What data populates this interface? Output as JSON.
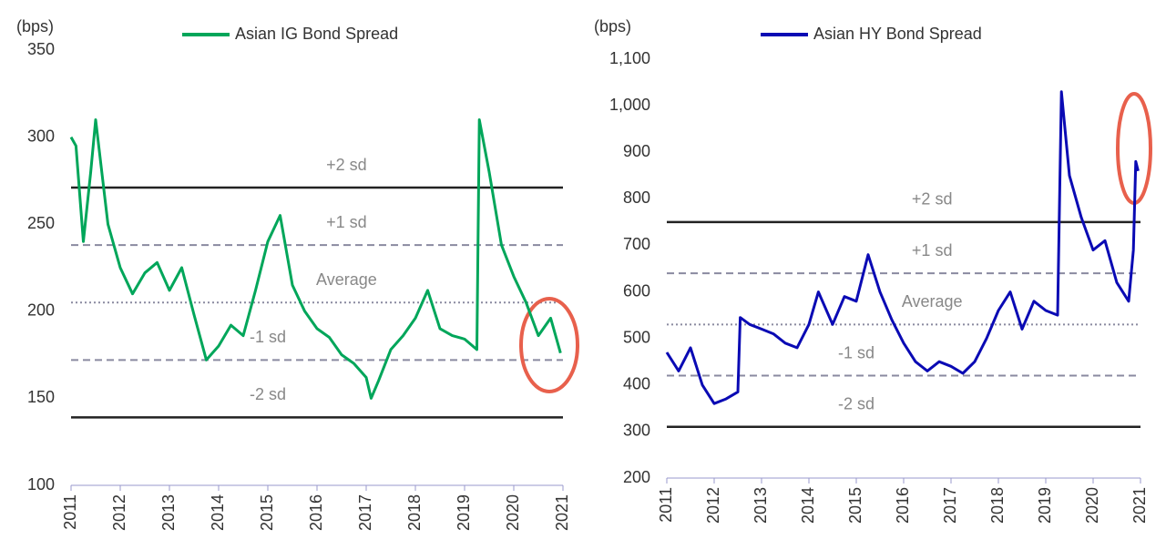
{
  "chart_data": [
    {
      "type": "line",
      "y_unit_label": "(bps)",
      "x": [
        2011,
        2011.1,
        2011.25,
        2011.4,
        2011.5,
        2011.75,
        2012,
        2012.25,
        2012.5,
        2012.75,
        2013,
        2013.25,
        2013.5,
        2013.75,
        2014,
        2014.25,
        2014.5,
        2014.75,
        2015,
        2015.25,
        2015.5,
        2015.75,
        2016,
        2016.25,
        2016.5,
        2016.75,
        2017,
        2017.1,
        2017.25,
        2017.5,
        2017.75,
        2018,
        2018.25,
        2018.5,
        2018.75,
        2019,
        2019.25,
        2019.3,
        2019.5,
        2019.75,
        2020,
        2020.25,
        2020.5,
        2020.75,
        2020.95
      ],
      "series": [
        {
          "name": "Asian IG Bond Spread",
          "color": "#00a65a",
          "values": [
            300,
            295,
            240,
            280,
            310,
            250,
            225,
            210,
            222,
            228,
            212,
            225,
            198,
            172,
            180,
            192,
            186,
            212,
            240,
            255,
            215,
            200,
            190,
            185,
            175,
            170,
            162,
            150,
            160,
            178,
            186,
            196,
            212,
            190,
            186,
            184,
            178,
            310,
            280,
            238,
            220,
            205,
            186,
            196,
            176
          ]
        }
      ],
      "xlim": [
        2011,
        2021
      ],
      "xticks": [
        2011,
        2012,
        2013,
        2014,
        2015,
        2016,
        2017,
        2018,
        2019,
        2020,
        2021
      ],
      "ylim": [
        100,
        350
      ],
      "yticks": [
        100,
        150,
        200,
        250,
        300,
        350
      ],
      "reference_lines": [
        {
          "label": "+2 sd",
          "value": 271,
          "style": "solid"
        },
        {
          "label": "+1 sd",
          "value": 238,
          "style": "dashed"
        },
        {
          "label": "Average",
          "value": 205,
          "style": "dotted"
        },
        {
          "label": "-1 sd",
          "value": 172,
          "style": "dashed"
        },
        {
          "label": "-2 sd",
          "value": 139,
          "style": "solid"
        }
      ]
    },
    {
      "type": "line",
      "y_unit_label": "(bps)",
      "x": [
        2011,
        2011.25,
        2011.5,
        2011.75,
        2012,
        2012.25,
        2012.5,
        2012.55,
        2012.75,
        2013,
        2013.25,
        2013.5,
        2013.75,
        2014,
        2014.2,
        2014.5,
        2014.75,
        2015,
        2015.25,
        2015.5,
        2015.75,
        2016,
        2016.25,
        2016.5,
        2016.75,
        2017,
        2017.25,
        2017.5,
        2017.75,
        2018,
        2018.25,
        2018.5,
        2018.75,
        2019,
        2019.25,
        2019.33,
        2019.5,
        2019.75,
        2020,
        2020.25,
        2020.5,
        2020.75,
        2020.85,
        2020.9,
        2020.95
      ],
      "series": [
        {
          "name": "Asian HY Bond Spread",
          "color": "#0a0ab4",
          "values": [
            470,
            430,
            480,
            400,
            360,
            370,
            385,
            545,
            530,
            520,
            510,
            490,
            480,
            530,
            600,
            530,
            590,
            580,
            680,
            600,
            540,
            490,
            450,
            430,
            450,
            440,
            425,
            450,
            500,
            560,
            600,
            520,
            580,
            560,
            550,
            1030,
            850,
            760,
            690,
            710,
            620,
            580,
            690,
            880,
            860
          ]
        }
      ],
      "xlim": [
        2011,
        2021
      ],
      "xticks": [
        2011,
        2012,
        2013,
        2014,
        2015,
        2016,
        2017,
        2018,
        2019,
        2020,
        2021
      ],
      "ylim": [
        200,
        1100
      ],
      "yticks": [
        200,
        300,
        400,
        500,
        600,
        700,
        800,
        900,
        {
          "value": 1000,
          "label": "1,000"
        },
        {
          "value": 1100,
          "label": "1,100"
        }
      ],
      "reference_lines": [
        {
          "label": "+2 sd",
          "value": 750,
          "style": "solid"
        },
        {
          "label": "+1 sd",
          "value": 640,
          "style": "dashed"
        },
        {
          "label": "Average",
          "value": 530,
          "style": "dotted"
        },
        {
          "label": "-1 sd",
          "value": 420,
          "style": "dashed"
        },
        {
          "label": "-2 sd",
          "value": 310,
          "style": "solid"
        }
      ]
    }
  ]
}
